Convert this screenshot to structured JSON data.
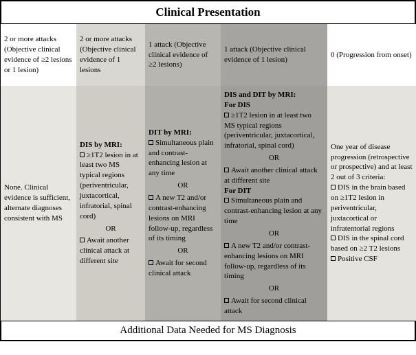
{
  "title": "Clinical Presentation",
  "footer": "Additional Data Needed for MS Diagnosis",
  "columns": {
    "c1": {
      "bg_top": "#ffffff",
      "bg_body": "#e8e6e1",
      "top": "2 or more attacks (Objective clinical evidence of ≥2 lesions or 1 lesion)",
      "body_text": "None. Clinical evidence is sufficient, alternate diagnoses consistent with MS"
    },
    "c2": {
      "bg_top": "#d9d7d2",
      "bg_body": "#cfccc6",
      "top": "2 or more attacks (Objective clinical evidence of 1 lesions",
      "body_title": "DIS by MRI:",
      "item1": "≥1T2 lesion in at least two MS typical regions (periventricular, juxtacortical, infratorial, spinal cord)",
      "or": "OR",
      "item2": "Await another clinical attack at different site"
    },
    "c3": {
      "bg_top": "#b8b6b1",
      "bg_body": "#b1afaa",
      "top": "1 attack (Objective clinical evidence of ≥2 lesions)",
      "body_title": "DIT by MRI:",
      "item1": "Simultaneous plain and contrast-enhancing lesion at any time",
      "or": "OR",
      "item2": "A new T2 and/or contrast-enhancing lesions on MRI follow-up, regardless of its timing",
      "item3": "Await for second clinical attack"
    },
    "c4": {
      "bg_top": "#a6a4a0",
      "bg_body": "#a09e9a",
      "top": "1 attack (Objective clinical evidence of 1 lesion)",
      "title1": "DIS and DIT by MRI:",
      "sub1": "For DIS",
      "d1": "≥1T2 lesion in at least two MS typical regions (periventricular, juxtacortical, infratorial, spinal cord)",
      "or": "OR",
      "d2": "Await another clinical attack at different site",
      "sub2": "For DIT",
      "t1": "Simultaneous plain and contrast-enhancing lesion at any time",
      "t2": "A new T2 and/or contrast-enhancing lesions on MRI follow-up, regardless of its timing",
      "t3": "Await for second clinical attack"
    },
    "c5": {
      "bg_top": "#ffffff",
      "bg_body": "#e5e3de",
      "top": "0 (Progression from onset)",
      "intro": "One year of disease progression (retrospective or prospective) and at least 2 out of 3 criteria:",
      "i1": "DIS in the brain based on ≥1T2 lesion in periventricular, juxtacortical or infratentorial regions",
      "i2": "DIS in the spinal cord based on ≥2 T2 lesions",
      "i3": "Positive CSF"
    }
  }
}
